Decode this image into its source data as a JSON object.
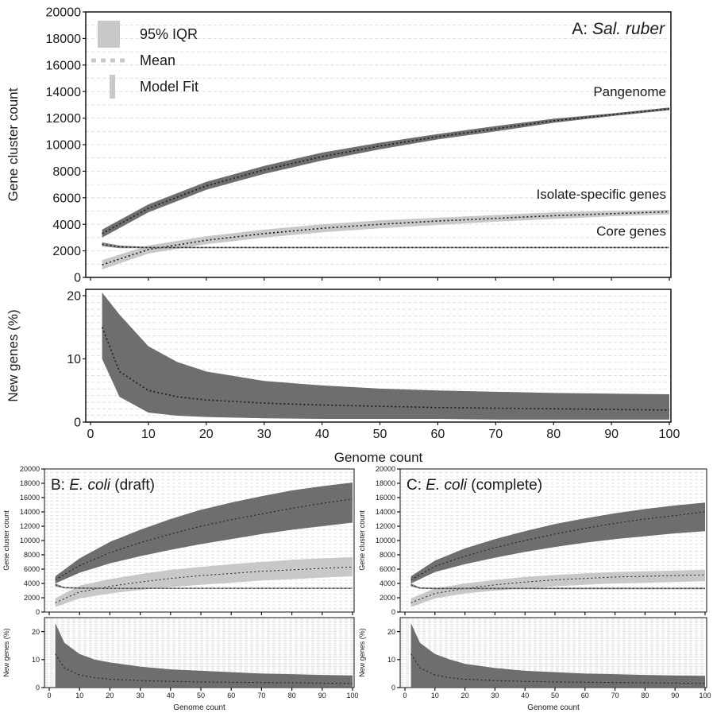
{
  "chart_data": [
    {
      "panel": "A",
      "type": "area",
      "title_prefix": "A: ",
      "title_italic": "Sal. ruber",
      "title_suffix": "",
      "ylabel": "Gene cluster count",
      "xlabel": "",
      "xlim": [
        0,
        100
      ],
      "ylim": [
        0,
        20000
      ],
      "yticks": [
        0,
        2000,
        4000,
        6000,
        8000,
        10000,
        12000,
        14000,
        16000,
        18000,
        20000
      ],
      "grid": true,
      "legend": [
        {
          "label": "95% IQR",
          "style": "band"
        },
        {
          "label": "Mean",
          "style": "dotted"
        },
        {
          "label": "Model Fit",
          "style": "bar"
        }
      ],
      "legend_position": "top-left",
      "series": [
        {
          "name": "Pangenome",
          "x": [
            2,
            10,
            20,
            30,
            40,
            50,
            60,
            70,
            80,
            90,
            100
          ],
          "mean": [
            3300,
            5200,
            6900,
            8100,
            9100,
            9900,
            10600,
            11200,
            11800,
            12250,
            12700
          ],
          "low": [
            3000,
            4900,
            6600,
            7800,
            8800,
            9650,
            10400,
            11000,
            11650,
            12150,
            12600
          ],
          "high": [
            3600,
            5500,
            7200,
            8400,
            9400,
            10150,
            10800,
            11400,
            11950,
            12350,
            12800
          ]
        },
        {
          "name": "Isolate-specific genes",
          "x": [
            2,
            10,
            20,
            30,
            40,
            50,
            60,
            70,
            80,
            90,
            100
          ],
          "mean": [
            950,
            2100,
            2800,
            3300,
            3700,
            4000,
            4250,
            4450,
            4650,
            4800,
            4950
          ],
          "low": [
            600,
            1800,
            2500,
            3000,
            3400,
            3700,
            3950,
            4200,
            4400,
            4600,
            4750
          ],
          "high": [
            1300,
            2400,
            3100,
            3600,
            4000,
            4300,
            4500,
            4700,
            4900,
            5000,
            5100
          ]
        },
        {
          "name": "Core genes",
          "x": [
            2,
            5,
            10,
            20,
            40,
            100
          ],
          "mean": [
            2500,
            2300,
            2250,
            2250,
            2250,
            2250
          ],
          "low": [
            2350,
            2200,
            2200,
            2200,
            2200,
            2200
          ],
          "high": [
            2650,
            2400,
            2300,
            2300,
            2300,
            2300
          ]
        }
      ]
    },
    {
      "panel": "A-new",
      "type": "area",
      "ylabel": "New genes (%)",
      "xlabel": "Genome count",
      "xlim": [
        0,
        100
      ],
      "ylim": [
        0,
        21
      ],
      "yticks": [
        0,
        10,
        20
      ],
      "xticks": [
        0,
        10,
        20,
        30,
        40,
        50,
        60,
        70,
        80,
        90,
        100
      ],
      "grid": true,
      "series": [
        {
          "x": [
            2,
            5,
            10,
            15,
            20,
            30,
            40,
            50,
            60,
            70,
            80,
            90,
            100
          ],
          "mean": [
            15,
            8,
            5,
            4,
            3.5,
            3,
            2.7,
            2.5,
            2.3,
            2.2,
            2.1,
            2,
            1.9
          ],
          "low": [
            10,
            4,
            1.5,
            1,
            0.8,
            0.6,
            0.5,
            0.5,
            0.5,
            0.4,
            0.4,
            0.4,
            0.4
          ],
          "high": [
            20.5,
            17,
            12,
            9.5,
            8,
            6.5,
            5.8,
            5.3,
            5,
            4.8,
            4.6,
            4.5,
            4.4
          ]
        }
      ]
    },
    {
      "panel": "B",
      "type": "area",
      "title_prefix": "B: ",
      "title_italic": "E. coli",
      "title_suffix": " (draft)",
      "ylabel": "Gene cluster count",
      "xlabel": "",
      "xlim": [
        0,
        100
      ],
      "ylim": [
        0,
        20000
      ],
      "yticks": [
        0,
        2000,
        4000,
        6000,
        8000,
        10000,
        12000,
        14000,
        16000,
        18000,
        20000
      ],
      "grid": true,
      "series": [
        {
          "x": [
            2,
            10,
            20,
            30,
            40,
            50,
            60,
            70,
            80,
            90,
            100
          ],
          "mean": [
            4500,
            6500,
            8300,
            9700,
            10900,
            12000,
            12900,
            13700,
            14500,
            15200,
            15800
          ],
          "low": [
            4000,
            5500,
            6800,
            7800,
            8700,
            9500,
            10200,
            10900,
            11500,
            12000,
            12500
          ],
          "high": [
            5000,
            7500,
            9800,
            11500,
            13000,
            14300,
            15300,
            16200,
            17000,
            17600,
            18100
          ]
        },
        {
          "x": [
            2,
            10,
            20,
            30,
            40,
            50,
            60,
            70,
            80,
            90,
            100
          ],
          "mean": [
            1300,
            2800,
            3600,
            4200,
            4700,
            5100,
            5400,
            5700,
            5900,
            6100,
            6300
          ],
          "low": [
            700,
            1900,
            2600,
            3100,
            3500,
            3800,
            4100,
            4400,
            4600,
            4800,
            5000
          ],
          "high": [
            1900,
            3700,
            4600,
            5300,
            5900,
            6300,
            6700,
            7000,
            7300,
            7500,
            7700
          ]
        },
        {
          "x": [
            2,
            5,
            10,
            20,
            40,
            100
          ],
          "mean": [
            3800,
            3400,
            3350,
            3300,
            3300,
            3300
          ],
          "low": [
            3600,
            3300,
            3250,
            3250,
            3250,
            3250
          ],
          "high": [
            4000,
            3500,
            3450,
            3400,
            3400,
            3400
          ]
        }
      ]
    },
    {
      "panel": "B-new",
      "type": "area",
      "ylabel": "New genes (%)",
      "xlabel": "Genome count",
      "xlim": [
        0,
        100
      ],
      "ylim": [
        0,
        25
      ],
      "yticks": [
        0,
        10,
        20
      ],
      "xticks": [
        0,
        10,
        20,
        30,
        40,
        50,
        60,
        70,
        80,
        90,
        100
      ],
      "grid": true,
      "series": [
        {
          "x": [
            2,
            5,
            10,
            15,
            20,
            30,
            40,
            50,
            60,
            70,
            80,
            90,
            100
          ],
          "mean": [
            12,
            7,
            4.5,
            3.5,
            3,
            2.5,
            2.2,
            2,
            1.9,
            1.8,
            1.7,
            1.6,
            1.5
          ],
          "low": [
            0.2,
            0.2,
            0.2,
            0.2,
            0.2,
            0.2,
            0.2,
            0.2,
            0.2,
            0.2,
            0.2,
            0.2,
            0.2
          ],
          "high": [
            23,
            16,
            12,
            10,
            9,
            7.5,
            6.5,
            6,
            5.5,
            5,
            4.8,
            4.5,
            4.3
          ]
        }
      ]
    },
    {
      "panel": "C",
      "type": "area",
      "title_prefix": "C: ",
      "title_italic": "E. coli",
      "title_suffix": " (complete)",
      "ylabel": "Gene cluster count",
      "xlabel": "",
      "xlim": [
        0,
        100
      ],
      "ylim": [
        0,
        20000
      ],
      "yticks": [
        0,
        2000,
        4000,
        6000,
        8000,
        10000,
        12000,
        14000,
        16000,
        18000,
        20000
      ],
      "grid": true,
      "series": [
        {
          "x": [
            2,
            10,
            20,
            30,
            40,
            50,
            60,
            70,
            80,
            90,
            100
          ],
          "mean": [
            4500,
            6400,
            7800,
            9000,
            10000,
            10900,
            11700,
            12400,
            13000,
            13500,
            14000
          ],
          "low": [
            4000,
            5600,
            6700,
            7600,
            8400,
            9100,
            9700,
            10200,
            10600,
            11000,
            11300
          ],
          "high": [
            5000,
            7200,
            8900,
            10200,
            11300,
            12300,
            13100,
            13800,
            14400,
            14900,
            15300
          ]
        },
        {
          "x": [
            2,
            10,
            20,
            30,
            40,
            50,
            60,
            70,
            80,
            90,
            100
          ],
          "mean": [
            1300,
            2600,
            3300,
            3800,
            4200,
            4500,
            4700,
            4900,
            5000,
            5100,
            5200
          ],
          "low": [
            700,
            1900,
            2600,
            3000,
            3300,
            3600,
            3800,
            4000,
            4100,
            4200,
            4300
          ],
          "high": [
            1900,
            3300,
            4000,
            4500,
            4900,
            5200,
            5400,
            5600,
            5700,
            5800,
            5900
          ]
        },
        {
          "x": [
            2,
            5,
            10,
            20,
            40,
            100
          ],
          "mean": [
            3800,
            3350,
            3300,
            3300,
            3300,
            3300
          ],
          "low": [
            3600,
            3250,
            3200,
            3200,
            3200,
            3200
          ],
          "high": [
            4000,
            3450,
            3400,
            3400,
            3400,
            3400
          ]
        }
      ]
    },
    {
      "panel": "C-new",
      "type": "area",
      "ylabel": "New genes (%)",
      "xlabel": "Genome count",
      "xlim": [
        0,
        100
      ],
      "ylim": [
        0,
        25
      ],
      "yticks": [
        0,
        10,
        20
      ],
      "xticks": [
        0,
        10,
        20,
        30,
        40,
        50,
        60,
        70,
        80,
        90,
        100
      ],
      "grid": true,
      "series": [
        {
          "x": [
            2,
            5,
            10,
            15,
            20,
            30,
            40,
            50,
            60,
            70,
            80,
            90,
            100
          ],
          "mean": [
            12,
            7,
            4.5,
            3.5,
            3,
            2.5,
            2.2,
            2,
            1.9,
            1.8,
            1.7,
            1.6,
            1.5
          ],
          "low": [
            0.2,
            0.2,
            0.2,
            0.2,
            0.2,
            0.2,
            0.2,
            0.2,
            0.2,
            0.2,
            0.2,
            0.2,
            0.2
          ],
          "high": [
            23,
            16,
            12,
            10,
            8.5,
            7,
            6,
            5.5,
            5,
            4.8,
            4.5,
            4.3,
            4.2
          ]
        }
      ]
    }
  ],
  "colors": {
    "pangenome_band": "#6e6e6e",
    "isolate_band": "#c8c8c8",
    "core_band": "#8a8a8a",
    "new_genes_band": "#6e6e6e",
    "mean": "#1a1a1a",
    "grid": "#d8d8d8",
    "legend_swatch": "#c8c8c8"
  }
}
